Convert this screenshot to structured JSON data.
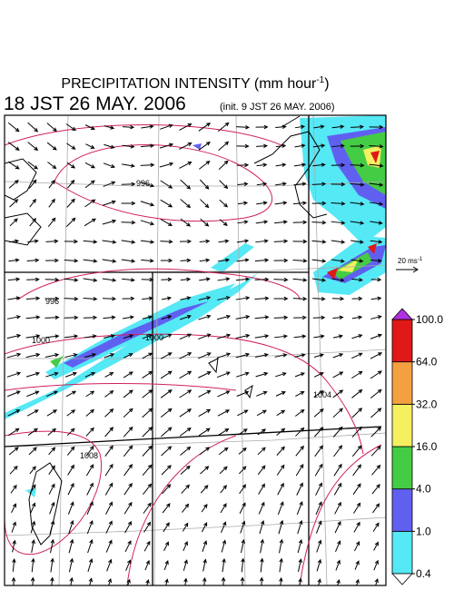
{
  "header": {
    "title_main": "PRECIPITATION INTENSITY (mm hour",
    "title_exponent": "-1",
    "title_close": ")",
    "valid_time": "18 JST 26 MAY. 2006",
    "init_time": "(init. 9 JST 26 MAY. 2006)"
  },
  "reference_vector": {
    "label": "20 ms",
    "exponent": "-1"
  },
  "isobar_labels": [
    "996",
    "1000",
    "996",
    "1000",
    "1004",
    "1008"
  ],
  "colorbar": {
    "levels": [
      {
        "value": 0.4,
        "label": "0.4"
      },
      {
        "value": 1,
        "label": "1.0"
      },
      {
        "value": 4,
        "label": "4.0"
      },
      {
        "value": 16,
        "label": "16.0"
      },
      {
        "value": 32,
        "label": "32.0"
      },
      {
        "value": 64,
        "label": "64.0"
      },
      {
        "value": 100,
        "label": "100.0"
      }
    ],
    "colors": [
      "#55e8f5",
      "#6060f0",
      "#44cc44",
      "#f5f060",
      "#f5a040",
      "#e01818"
    ],
    "under_color": "#ffffff",
    "over_color": "#b030e0"
  }
}
